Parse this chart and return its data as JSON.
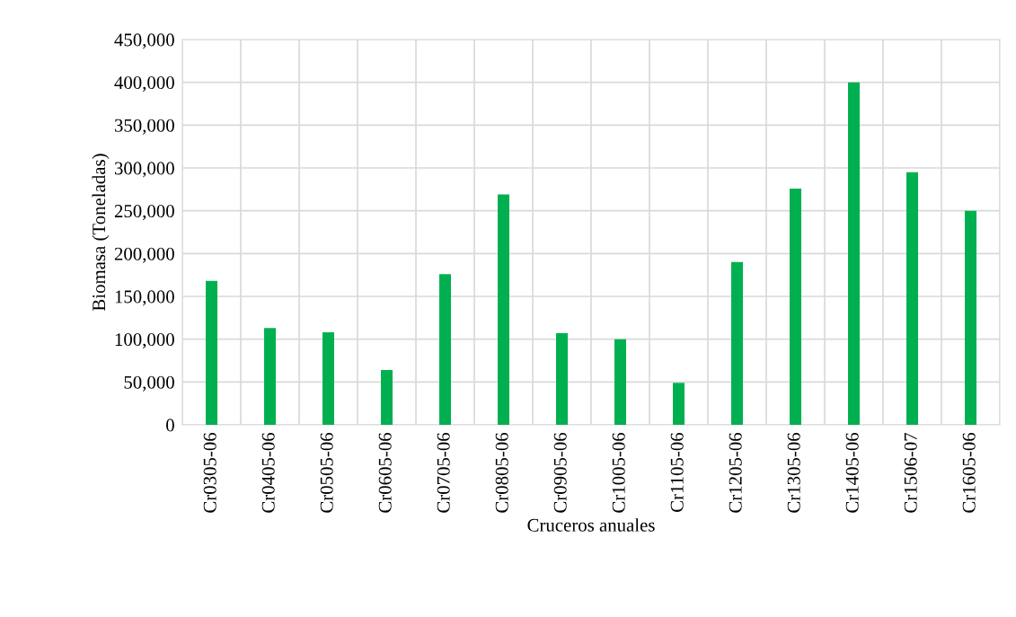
{
  "chart_data": {
    "type": "bar",
    "xlabel": "Cruceros anuales",
    "ylabel": "Biomasa (Toneladas)",
    "categories": [
      "Cr0305-06",
      "Cr0405-06",
      "Cr0505-06",
      "Cr0605-06",
      "Cr0705-06",
      "Cr0805-06",
      "Cr0905-06",
      "Cr1005-06",
      "Cr1105-06",
      "Cr1205-06",
      "Cr1305-06",
      "Cr1405-06",
      "Cr1506-07",
      "Cr1605-06"
    ],
    "values": [
      168000,
      113000,
      108000,
      64000,
      176000,
      269000,
      107000,
      100000,
      49000,
      190000,
      276000,
      400000,
      295000,
      250000
    ],
    "color": "#00b050",
    "ylim": [
      0,
      450000
    ],
    "yticks": [
      {
        "value": 0,
        "label": "0"
      },
      {
        "value": 50000,
        "label": "50,000"
      },
      {
        "value": 100000,
        "label": "100,000"
      },
      {
        "value": 150000,
        "label": "150,000"
      },
      {
        "value": 200000,
        "label": "200,000"
      },
      {
        "value": 250000,
        "label": "250,000"
      },
      {
        "value": 300000,
        "label": "300,000"
      },
      {
        "value": 350000,
        "label": "350,000"
      },
      {
        "value": 400000,
        "label": "400,000"
      },
      {
        "value": 450000,
        "label": "450,000"
      }
    ],
    "grid": true
  }
}
